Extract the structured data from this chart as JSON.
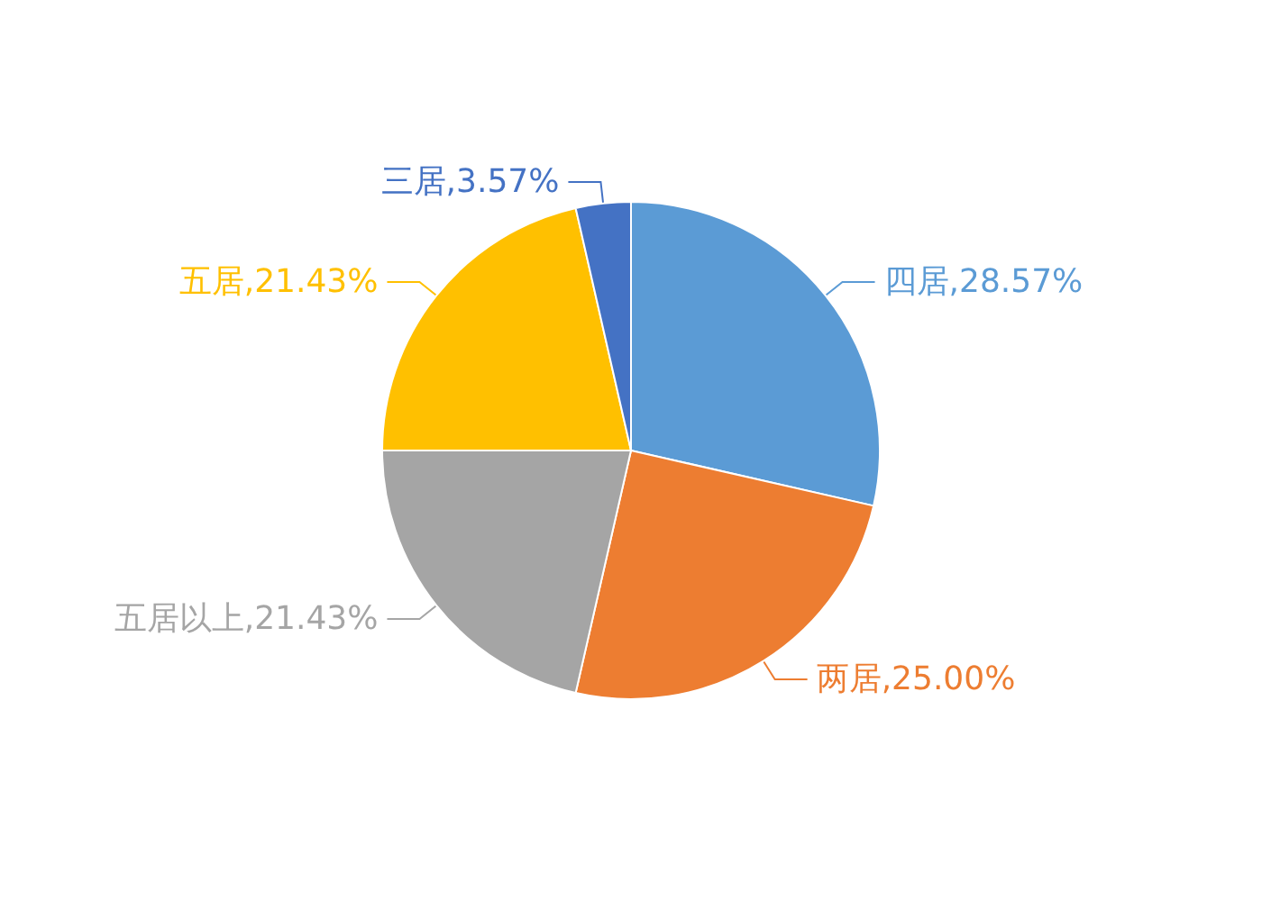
{
  "chart_data": {
    "type": "pie",
    "categories": [
      "四居",
      "两居",
      "五居以上",
      "五居",
      "三居"
    ],
    "values": [
      28.57,
      25.0,
      21.43,
      21.43,
      3.57
    ],
    "colors": [
      "#5b9bd5",
      "#ed7d31",
      "#a5a5a5",
      "#ffc000",
      "#4472c4"
    ],
    "value_labels": [
      "28.57%",
      "25.00%",
      "21.43%",
      "21.43%",
      "3.57%"
    ],
    "legend": false
  }
}
